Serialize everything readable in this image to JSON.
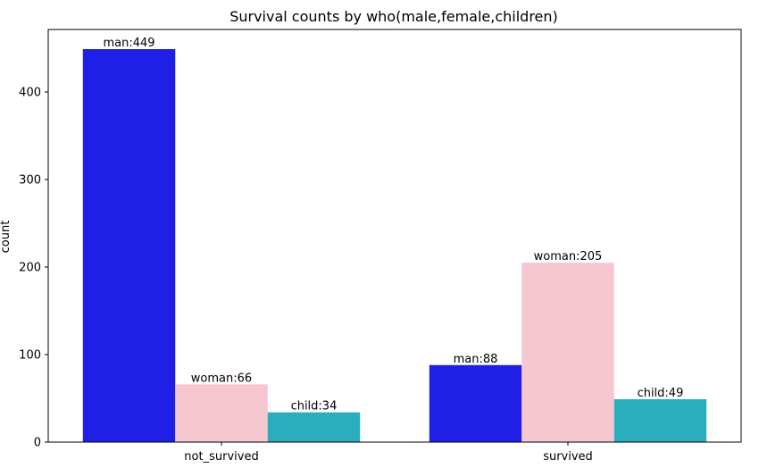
{
  "chart_data": {
    "type": "bar",
    "title": "Survival counts by who(male,female,children)",
    "xlabel": "",
    "ylabel": "count",
    "categories": [
      "not_survived",
      "survived"
    ],
    "series": [
      {
        "name": "man",
        "values": [
          449,
          88
        ],
        "color": "#1f1fe6"
      },
      {
        "name": "woman",
        "values": [
          66,
          205
        ],
        "color": "#f7c7d1"
      },
      {
        "name": "child",
        "values": [
          34,
          49
        ],
        "color": "#2aaebd"
      }
    ],
    "bar_labels": [
      [
        "man:449",
        "man:88"
      ],
      [
        "woman:66",
        "woman:205"
      ],
      [
        "child:34",
        "child:49"
      ]
    ],
    "y_ticks": [
      0,
      100,
      200,
      300,
      400
    ],
    "ylim": [
      0,
      471.45
    ],
    "grid": false,
    "legend": "none"
  }
}
